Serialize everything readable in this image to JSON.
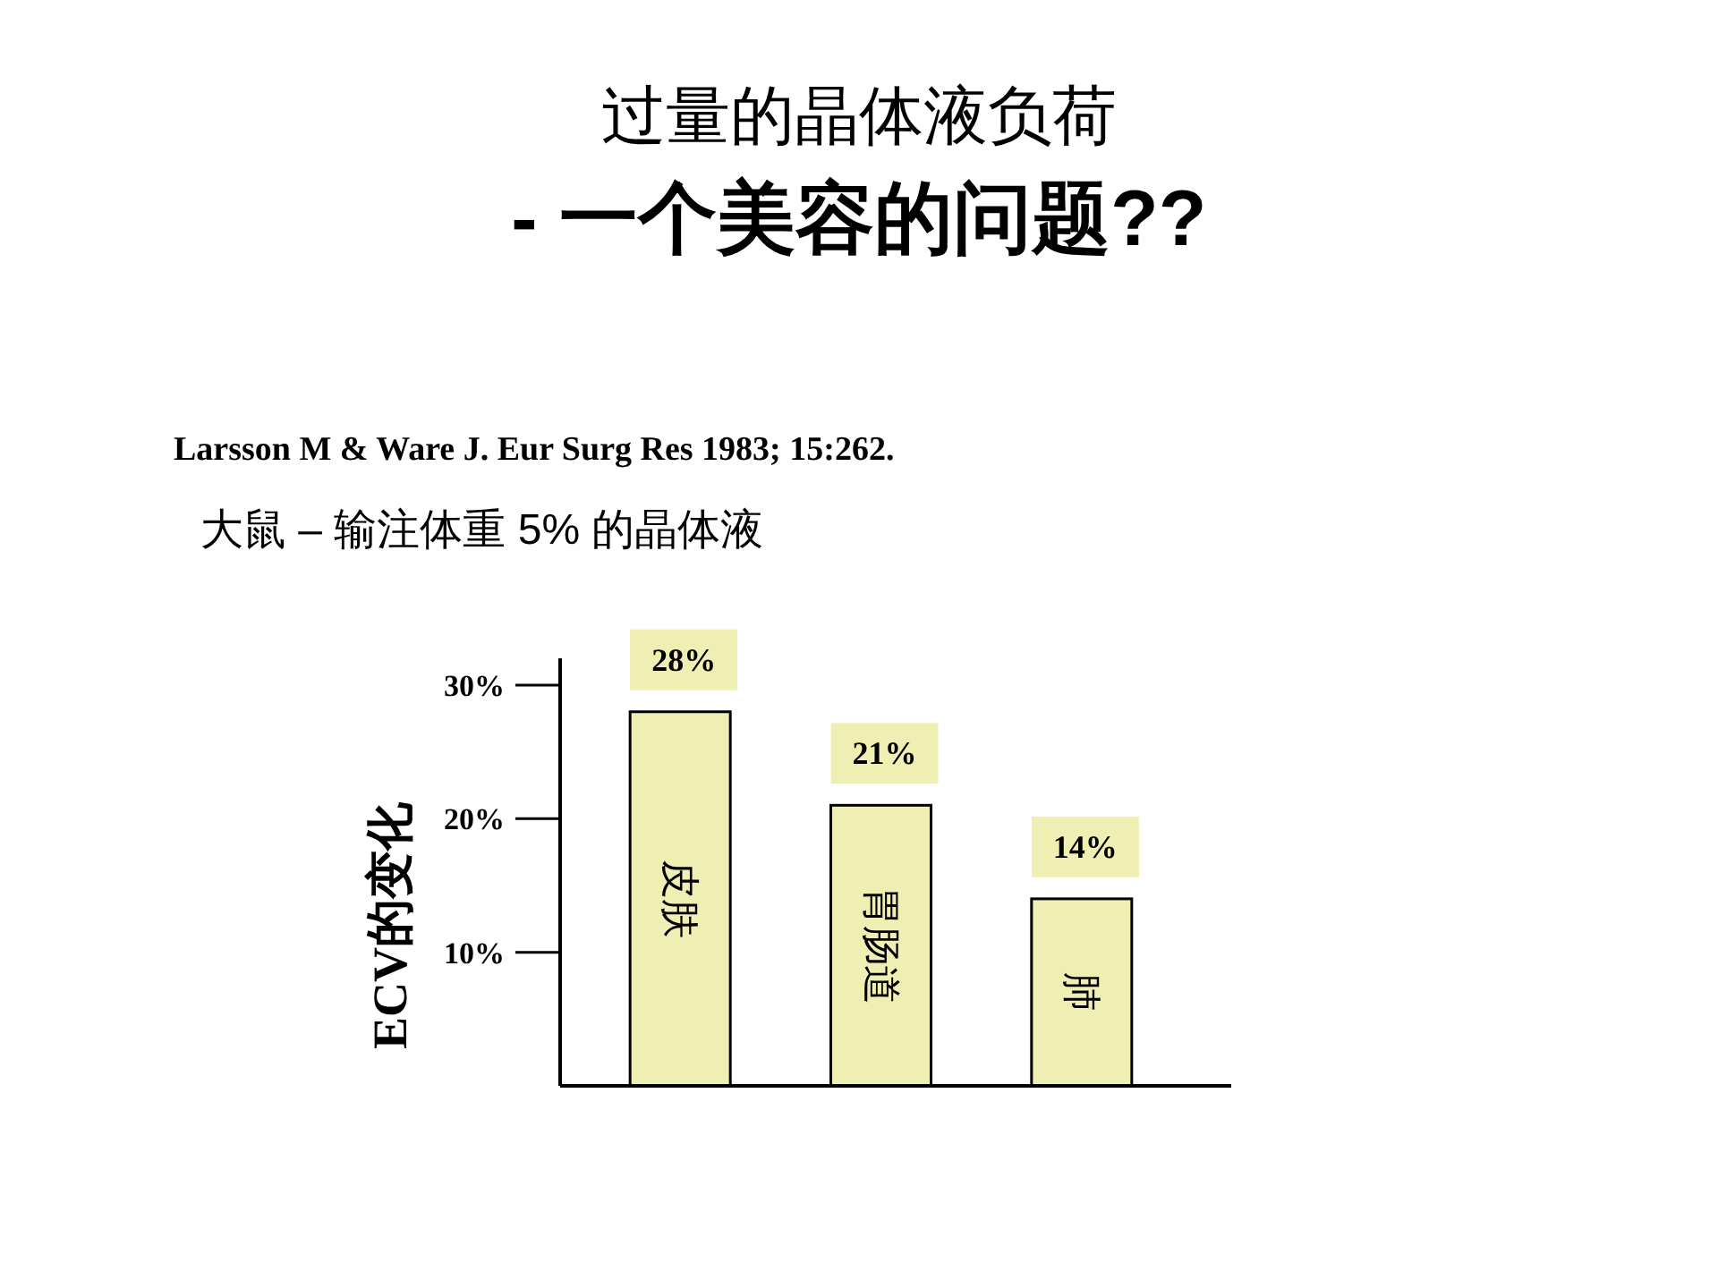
{
  "chart_data": {
    "type": "bar",
    "title": "过量的晶体液负荷",
    "subtitle": "- 一个美容的问题??",
    "ylabel": "ECV的变化",
    "categories": [
      "皮肤",
      "胃肠道",
      "肺"
    ],
    "values": [
      28,
      21,
      14
    ],
    "value_labels": [
      "28%",
      "21%",
      "14%"
    ],
    "color": "#efefb4",
    "ylim": [
      0,
      32
    ],
    "yticks": [
      {
        "value": 10,
        "label": "10%"
      },
      {
        "value": 20,
        "label": "20%"
      },
      {
        "value": 30,
        "label": "30%"
      }
    ],
    "annotations": [
      "Larsson M & Ware J. Eur Surg Res 1983; 15:262.",
      "大鼠 – 输注体重 5% 的晶体液"
    ]
  }
}
